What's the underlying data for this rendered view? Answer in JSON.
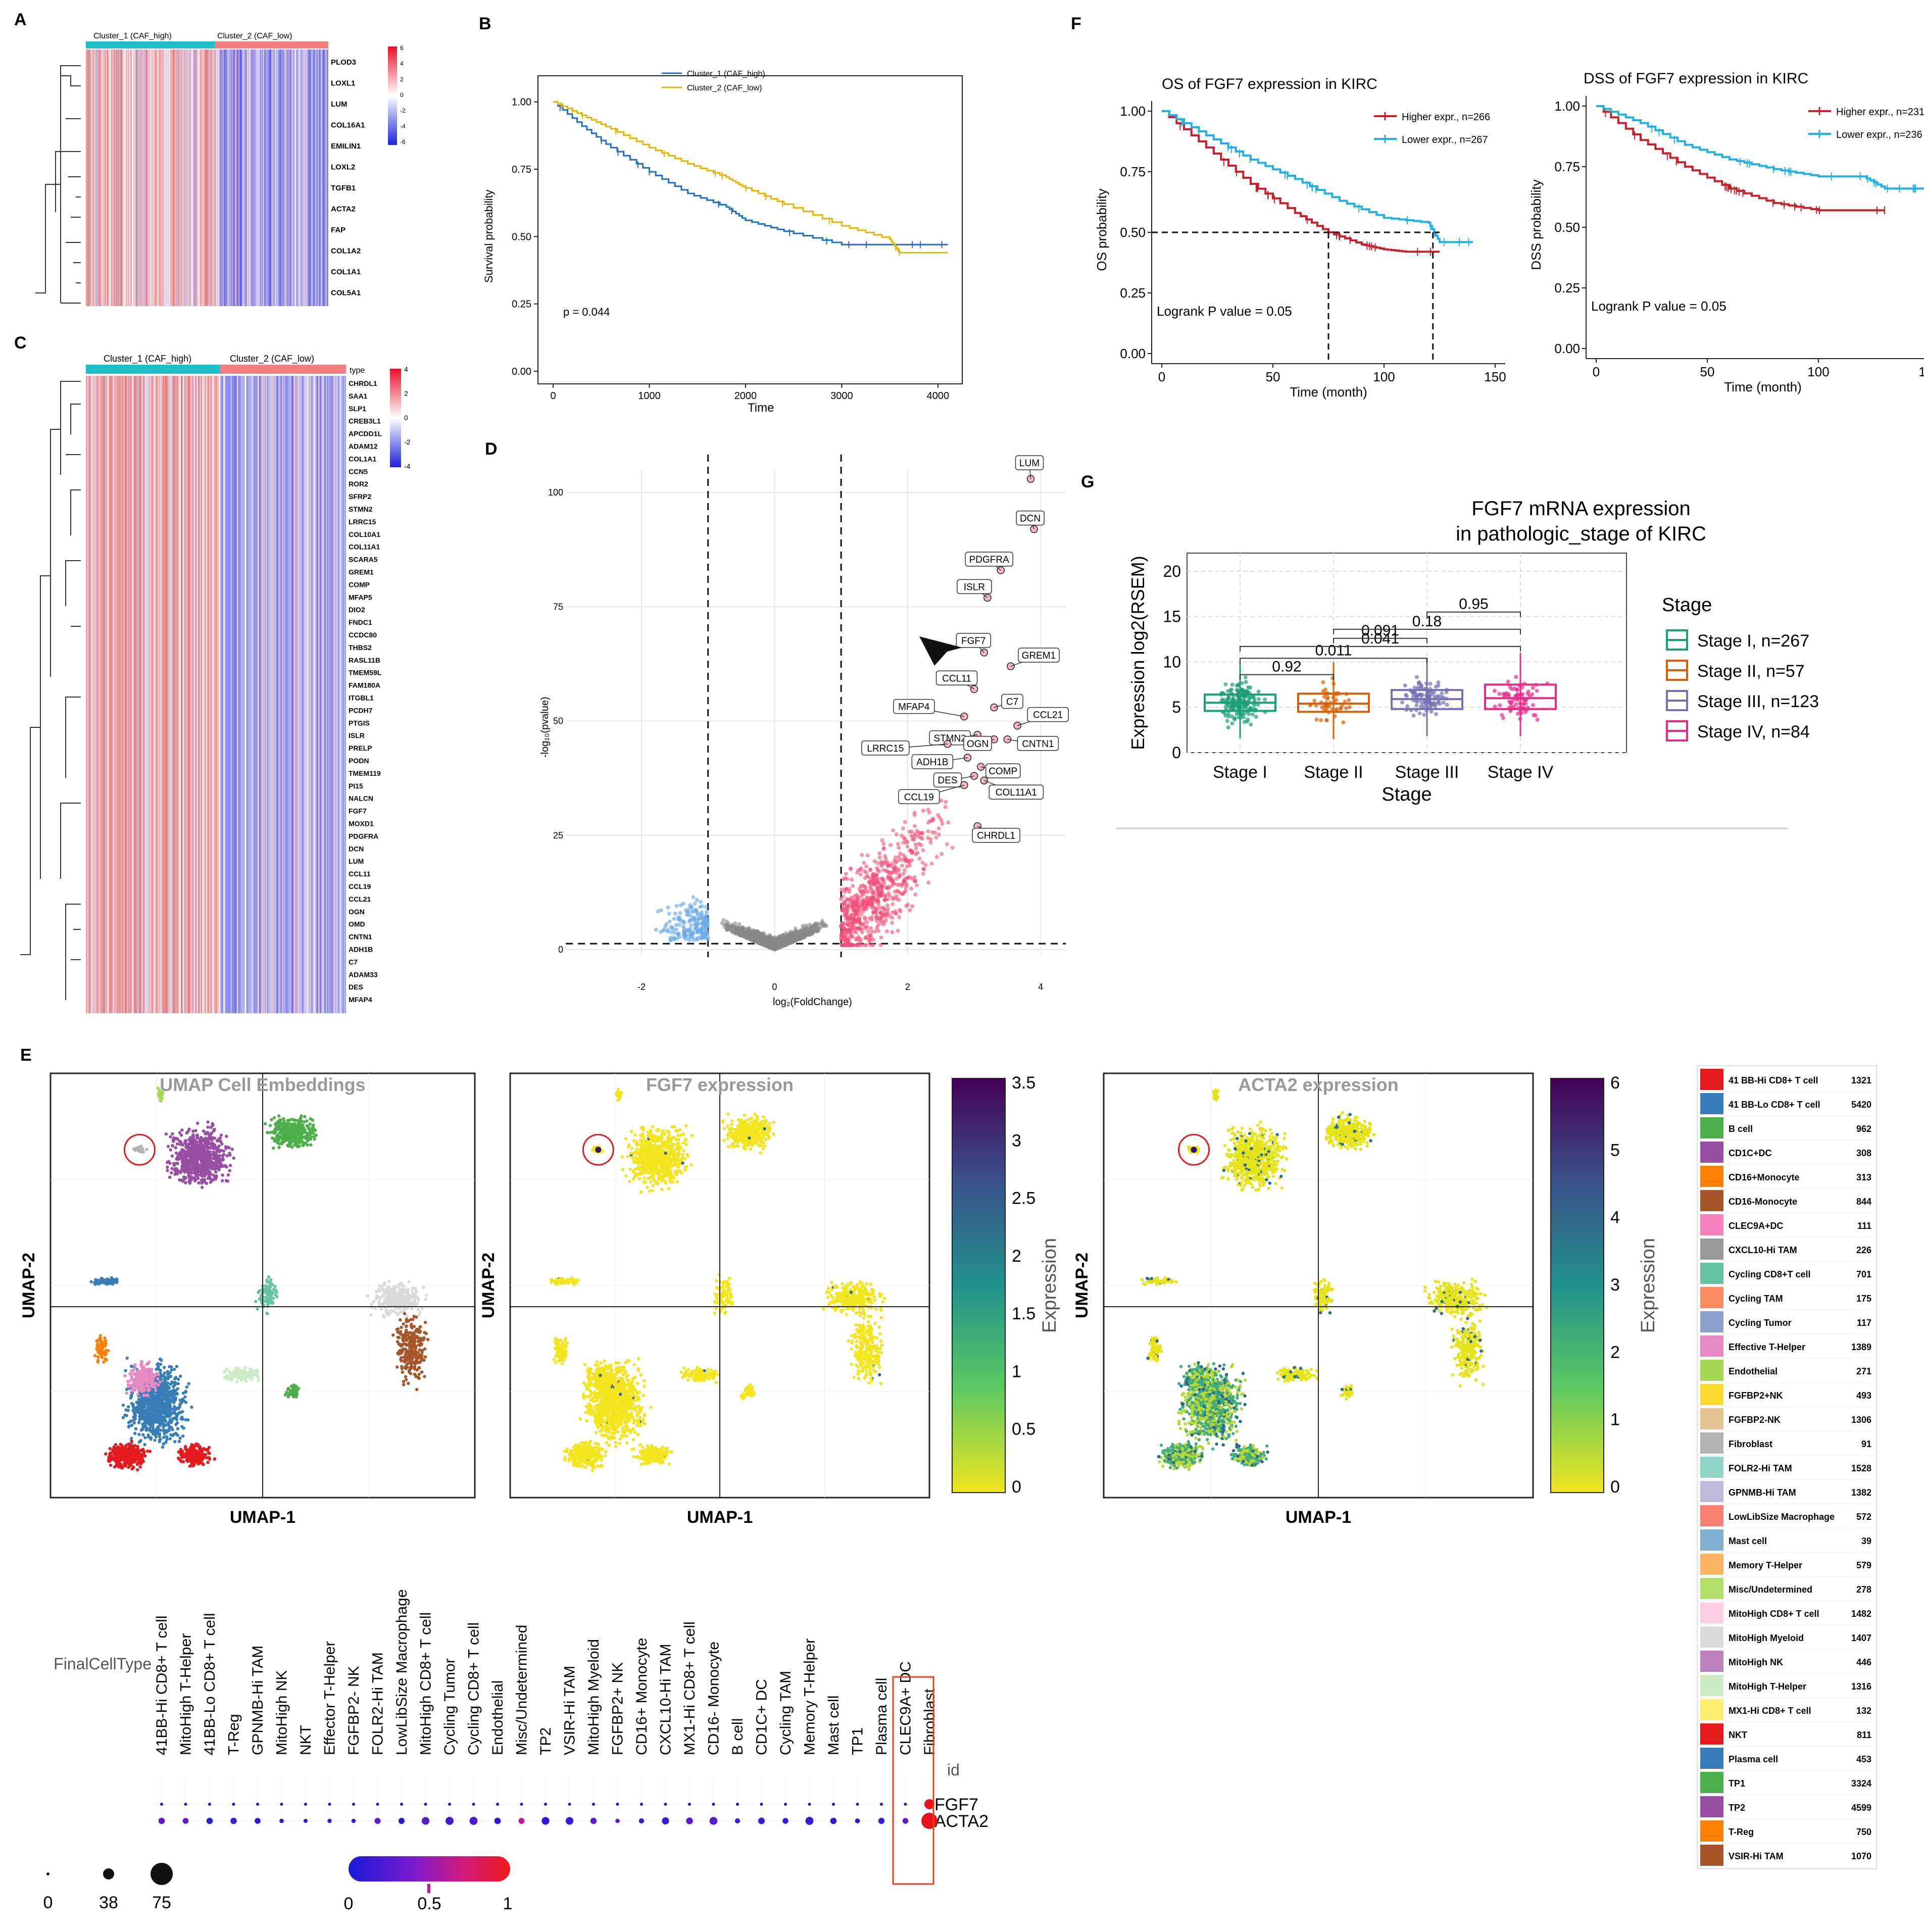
{
  "panels": {
    "A": {
      "label": "A",
      "cluster_1": "Cluster_1 (CAF_high)",
      "cluster_2": "Cluster_2 (CAF_low)",
      "genes": [
        "PLOD3",
        "LOXL1",
        "LUM",
        "COL16A1",
        "EMILIN1",
        "LOXL2",
        "TGFB1",
        "ACTA2",
        "FAP",
        "COL1A2",
        "COL1A1",
        "COL5A1"
      ],
      "scale": [
        "6",
        "4",
        "2",
        "0",
        "-2",
        "-4",
        "-6"
      ]
    },
    "B": {
      "label": "B",
      "legend": [
        "Cluster_1 (CAF_high)",
        "Cluster_2 (CAF_low)"
      ],
      "p_text": "p = 0.044",
      "xlabel": "Time",
      "ylabel": "Survival probability",
      "xticks": [
        "0",
        "1000",
        "2000",
        "3000",
        "4000"
      ],
      "yticks": [
        "0.00",
        "0.25",
        "0.50",
        "0.75",
        "1.00"
      ]
    },
    "C": {
      "label": "C",
      "cluster_1": "Cluster_1 (CAF_high)",
      "cluster_2": "Cluster_2 (CAF_low)",
      "type_label": "type",
      "genes": [
        "CHRDL1",
        "SAA1",
        "SLP1",
        "CREB3L1",
        "APCDD1L",
        "ADAM12",
        "COL1A1",
        "CCN5",
        "ROR2",
        "SFRP2",
        "STMN2",
        "LRRC15",
        "COL10A1",
        "COL11A1",
        "SCARA5",
        "GREM1",
        "COMP",
        "MFAP5",
        "DIO2",
        "FNDC1",
        "CCDC80",
        "THBS2",
        "RASL11B",
        "TMEM59L",
        "FAM180A",
        "ITGBL1",
        "PCDH7",
        "PTGIS",
        "ISLR",
        "PRELP",
        "PODN",
        "TMEM119",
        "PI15",
        "NALCN",
        "FGF7",
        "MOXD1",
        "PDGFRA",
        "DCN",
        "LUM",
        "CCL11",
        "CCL19",
        "CCL21",
        "OGN",
        "OMD",
        "CNTN1",
        "ADH1B",
        "C7",
        "ADAM33",
        "DES",
        "MFAP4"
      ],
      "scale": [
        "4",
        "2",
        "0",
        "-2",
        "-4"
      ]
    },
    "D": {
      "label": "D",
      "xlabel": "log₂(FoldChange)",
      "ylabel": "-log₁₀(pvalue)",
      "xticks": [
        "-2",
        "0",
        "2",
        "4"
      ],
      "yticks": [
        "0",
        "25",
        "50",
        "75",
        "100"
      ],
      "gene_labels": [
        "LUM",
        "DCN",
        "PDGFRA",
        "ISLR",
        "FGF7",
        "GREM1",
        "CCL11",
        "C7",
        "MFAP4",
        "CCL21",
        "STMN2",
        "CNTN1",
        "LRRC15",
        "OGN",
        "ADH1B",
        "COMP",
        "DES",
        "COL11A1",
        "CCL19",
        "CHRDL1"
      ]
    },
    "E": {
      "label": "E",
      "umap_titles": [
        "UMAP Cell Embeddings",
        "FGF7 expression",
        "ACTA2 expression"
      ],
      "xlabel": "UMAP-1",
      "ylabel": "UMAP-2",
      "expression_label": "Expression",
      "fgf7_scale": [
        "3.5",
        "3",
        "2.5",
        "2",
        "1.5",
        "1",
        "0.5",
        "0"
      ],
      "acta2_scale": [
        "6",
        "5",
        "4",
        "3",
        "2",
        "1",
        "0"
      ],
      "dot_row_label": "FinalCellType",
      "dot_id_label": "id",
      "dot_genes": [
        "FGF7",
        "ACTA2"
      ],
      "dot_celltypes": [
        "41BB-Hi CD8+ T cell",
        "MitoHigh T-Helper",
        "41BB-Lo CD8+ T cell",
        "T-Reg",
        "GPNMB-Hi TAM",
        "MitoHigh NK",
        "NKT",
        "Effector T-Helper",
        "FGFBP2- NK",
        "FOLR2-Hi TAM",
        "LowLibSize Macrophage",
        "MitoHigh CD8+ T cell",
        "Cycling Tumor",
        "Cycling CD8+ T cell",
        "Endothelial",
        "Misc/Undetermined",
        "TP2",
        "VSIR-Hi TAM",
        "MitoHigh Myeloid",
        "FGFBP2+ NK",
        "CD16+ Monocyte",
        "CXCL10-Hi TAM",
        "MX1-Hi CD8+ T cell",
        "CD16- Monocyte",
        "B cell",
        "CD1C+ DC",
        "Cycling TAM",
        "Memory T-Helper",
        "Mast cell",
        "TP1",
        "Plasma cell",
        "CLEC9A+ DC",
        "Fibroblast"
      ],
      "size_legend": [
        "0",
        "38",
        "75"
      ],
      "color_legend": [
        "0",
        "0.5",
        "1"
      ],
      "cell_legend": [
        {
          "name": "41 BB-Hi CD8+ T cell",
          "n": "1321",
          "color": "#e41a1c"
        },
        {
          "name": "41 BB-Lo CD8+ T cell",
          "n": "5420",
          "color": "#377eb8"
        },
        {
          "name": "B cell",
          "n": "962",
          "color": "#4daf4a"
        },
        {
          "name": "CD1C+DC",
          "n": "308",
          "color": "#984ea3"
        },
        {
          "name": "CD16+Monocyte",
          "n": "313",
          "color": "#ff7f00"
        },
        {
          "name": "CD16-Monocyte",
          "n": "844",
          "color": "#a65628"
        },
        {
          "name": "CLEC9A+DC",
          "n": "111",
          "color": "#f781bf"
        },
        {
          "name": "CXCL10-Hi TAM",
          "n": "226",
          "color": "#999999"
        },
        {
          "name": "Cycling CD8+T cell",
          "n": "701",
          "color": "#66c2a5"
        },
        {
          "name": "Cycling TAM",
          "n": "175",
          "color": "#fc8d62"
        },
        {
          "name": "Cycling Tumor",
          "n": "117",
          "color": "#8da0cb"
        },
        {
          "name": "Effective T-Helper",
          "n": "1389",
          "color": "#e78ac3"
        },
        {
          "name": "Endothelial",
          "n": "271",
          "color": "#a6d854"
        },
        {
          "name": "FGFBP2+NK",
          "n": "493",
          "color": "#ffd92f"
        },
        {
          "name": "FGFBP2-NK",
          "n": "1306",
          "color": "#e5c494"
        },
        {
          "name": "Fibroblast",
          "n": "91",
          "color": "#b3b3b3"
        },
        {
          "name": "FOLR2-Hi TAM",
          "n": "1528",
          "color": "#8dd3c7"
        },
        {
          "name": "GPNMB-Hi TAM",
          "n": "1382",
          "color": "#bebada"
        },
        {
          "name": "LowLibSize Macrophage",
          "n": "572",
          "color": "#fb8072"
        },
        {
          "name": "Mast cell",
          "n": "39",
          "color": "#80b1d3"
        },
        {
          "name": "Memory T-Helper",
          "n": "579",
          "color": "#fdb462"
        },
        {
          "name": "Misc/Undetermined",
          "n": "278",
          "color": "#b3de69"
        },
        {
          "name": "MitoHigh CD8+ T cell",
          "n": "1482",
          "color": "#fccde5"
        },
        {
          "name": "MitoHigh Myeloid",
          "n": "1407",
          "color": "#d9d9d9"
        },
        {
          "name": "MitoHigh NK",
          "n": "446",
          "color": "#bc80bd"
        },
        {
          "name": "MitoHigh T-Helper",
          "n": "1316",
          "color": "#ccebc5"
        },
        {
          "name": "MX1-Hi CD8+ T cell",
          "n": "132",
          "color": "#ffed6f"
        },
        {
          "name": "NKT",
          "n": "811",
          "color": "#e41a1c"
        },
        {
          "name": "Plasma cell",
          "n": "453",
          "color": "#377eb8"
        },
        {
          "name": "TP1",
          "n": "3324",
          "color": "#4daf4a"
        },
        {
          "name": "TP2",
          "n": "4599",
          "color": "#984ea3"
        },
        {
          "name": "T-Reg",
          "n": "750",
          "color": "#ff7f00"
        },
        {
          "name": "VSIR-Hi TAM",
          "n": "1070",
          "color": "#a65628"
        }
      ]
    },
    "F": {
      "label": "F",
      "os_title": "OS of FGF7 expression in KIRC",
      "dss_title": "DSS of FGF7 expression in KIRC",
      "os_legend": [
        "Higher expr., n=266",
        "Lower expr., n=267"
      ],
      "dss_legend": [
        "Higher expr., n=231",
        "Lower expr., n=236"
      ],
      "os_ylabel": "OS probability",
      "dss_ylabel": "DSS probability",
      "xlabel": "Time (month)",
      "logrank": "Logrank P value = 0.05",
      "xticks": [
        "0",
        "50",
        "100",
        "150"
      ],
      "yticks": [
        "0.00",
        "0.25",
        "0.50",
        "0.75",
        "1.00"
      ]
    },
    "G": {
      "label": "G",
      "title_line1": "FGF7 mRNA expression",
      "title_line2": "in pathologic_stage of KIRC",
      "ylabel": "Expression log2(RSEM)",
      "xlabel": "Stage",
      "legend_title": "Stage",
      "yticks": [
        "0",
        "5",
        "10",
        "15",
        "20"
      ],
      "pvals": [
        "0.92",
        "0.011",
        "0.041",
        "0.091",
        "0.18",
        "0.95"
      ]
    }
  },
  "colors": {
    "cluster1": "#1fbfc9",
    "cluster2": "#f08080",
    "km_blue": "#1f6fc9",
    "km_gold": "#e6b400",
    "high_red": "#c9202a",
    "low_blue": "#1fb0e6",
    "volcano_up": "#f0507a",
    "volcano_down": "#6aaae6",
    "volcano_ns": "#888888"
  },
  "chart_data": [
    {
      "type": "heatmap",
      "title": "A",
      "rows": [
        "PLOD3",
        "LOXL1",
        "LUM",
        "COL16A1",
        "EMILIN1",
        "LOXL2",
        "TGFB1",
        "ACTA2",
        "FAP",
        "COL1A2",
        "COL1A1",
        "COL5A1"
      ],
      "groups": [
        "Cluster_1 (CAF_high)",
        "Cluster_2 (CAF_low)"
      ],
      "range": [
        -6,
        6
      ]
    },
    {
      "type": "line",
      "title": "B",
      "xlabel": "Time",
      "ylabel": "Survival probability",
      "xlim": [
        0,
        4200
      ],
      "ylim": [
        0,
        1
      ],
      "series": [
        {
          "name": "Cluster_1 (CAF_high)",
          "x": [
            0,
            300,
            600,
            1000,
            1400,
            1800,
            2000,
            2400,
            3000,
            3500,
            4000,
            4100
          ],
          "y": [
            1.0,
            0.91,
            0.83,
            0.74,
            0.66,
            0.61,
            0.56,
            0.52,
            0.47,
            0.47,
            0.47,
            0.47
          ]
        },
        {
          "name": "Cluster_2 (CAF_low)",
          "x": [
            0,
            300,
            600,
            1000,
            1400,
            1800,
            2000,
            2400,
            3000,
            3500,
            3600,
            4100
          ],
          "y": [
            1.0,
            0.95,
            0.9,
            0.83,
            0.77,
            0.72,
            0.68,
            0.62,
            0.54,
            0.49,
            0.44,
            0.44
          ]
        }
      ],
      "annotation": "p = 0.044"
    },
    {
      "type": "heatmap",
      "title": "C",
      "rows_count": 50,
      "groups": [
        "Cluster_1 (CAF_high)",
        "Cluster_2 (CAF_low)"
      ],
      "range": [
        -4,
        4
      ]
    },
    {
      "type": "scatter",
      "title": "D",
      "xlabel": "log2(FoldChange)",
      "ylabel": "-log10(pvalue)",
      "xlim": [
        -2.5,
        4.2
      ],
      "ylim": [
        0,
        105
      ],
      "thresholds": {
        "fc": [
          -1,
          1
        ],
        "p": 1.3
      },
      "labeled_points": [
        {
          "gene": "LUM",
          "x": 3.85,
          "y": 103
        },
        {
          "gene": "DCN",
          "x": 3.9,
          "y": 92
        },
        {
          "gene": "PDGFRA",
          "x": 3.4,
          "y": 83
        },
        {
          "gene": "ISLR",
          "x": 3.2,
          "y": 77
        },
        {
          "gene": "FGF7",
          "x": 3.15,
          "y": 65
        },
        {
          "gene": "GREM1",
          "x": 3.55,
          "y": 62
        },
        {
          "gene": "CCL11",
          "x": 3.0,
          "y": 57
        },
        {
          "gene": "C7",
          "x": 3.3,
          "y": 53
        },
        {
          "gene": "MFAP4",
          "x": 2.85,
          "y": 51
        },
        {
          "gene": "CCL21",
          "x": 3.65,
          "y": 49
        },
        {
          "gene": "STMN2",
          "x": 3.05,
          "y": 47
        },
        {
          "gene": "CNTN1",
          "x": 3.5,
          "y": 46
        },
        {
          "gene": "LRRC15",
          "x": 2.6,
          "y": 45
        },
        {
          "gene": "OGN",
          "x": 3.3,
          "y": 46
        },
        {
          "gene": "ADH1B",
          "x": 2.9,
          "y": 42
        },
        {
          "gene": "COMP",
          "x": 3.1,
          "y": 40
        },
        {
          "gene": "DES",
          "x": 3.0,
          "y": 38
        },
        {
          "gene": "COL11A1",
          "x": 3.15,
          "y": 37
        },
        {
          "gene": "CCL19",
          "x": 2.85,
          "y": 36
        },
        {
          "gene": "CHRDL1",
          "x": 3.05,
          "y": 27
        }
      ]
    },
    {
      "type": "line",
      "title": "OS of FGF7 expression in KIRC",
      "xlabel": "Time (month)",
      "ylabel": "OS probability",
      "xlim": [
        0,
        150
      ],
      "ylim": [
        0,
        1
      ],
      "series": [
        {
          "name": "Higher expr., n=266",
          "x": [
            0,
            20,
            40,
            60,
            75,
            90,
            100,
            110,
            125
          ],
          "y": [
            1.0,
            0.85,
            0.7,
            0.58,
            0.5,
            0.45,
            0.43,
            0.42,
            0.42
          ]
        },
        {
          "name": "Lower expr., n=267",
          "x": [
            0,
            20,
            40,
            60,
            80,
            100,
            120,
            125,
            140
          ],
          "y": [
            1.0,
            0.9,
            0.8,
            0.72,
            0.63,
            0.56,
            0.54,
            0.46,
            0.46
          ]
        }
      ],
      "annotation": "Logrank P value = 0.05"
    },
    {
      "type": "line",
      "title": "DSS of FGF7 expression in KIRC",
      "xlabel": "Time (month)",
      "ylabel": "DSS probability",
      "xlim": [
        0,
        150
      ],
      "ylim": [
        0,
        1
      ],
      "series": [
        {
          "name": "Higher expr., n=231",
          "x": [
            0,
            20,
            40,
            60,
            80,
            100,
            130
          ],
          "y": [
            1.0,
            0.86,
            0.75,
            0.66,
            0.6,
            0.57,
            0.57
          ]
        },
        {
          "name": "Lower expr., n=236",
          "x": [
            0,
            20,
            40,
            60,
            80,
            100,
            120,
            130,
            150
          ],
          "y": [
            1.0,
            0.93,
            0.84,
            0.78,
            0.74,
            0.71,
            0.71,
            0.66,
            0.66
          ]
        }
      ],
      "annotation": "Logrank P value = 0.05"
    },
    {
      "type": "bar",
      "title": "FGF7 mRNA expression in pathologic_stage of KIRC",
      "subtype": "boxplot",
      "xlabel": "Stage",
      "ylabel": "Expression log2(RSEM)",
      "ylim": [
        0,
        22
      ],
      "categories": [
        "Stage I, n=267",
        "Stage II, n=57",
        "Stage III, n=123",
        "Stage IV, n=84"
      ],
      "medians": [
        5.5,
        5.4,
        5.9,
        6.0
      ],
      "q1": [
        4.6,
        4.5,
        4.8,
        4.8
      ],
      "q3": [
        6.4,
        6.5,
        6.9,
        7.5
      ],
      "comparisons": [
        {
          "pair": [
            "Stage I",
            "Stage II"
          ],
          "p": "0.92"
        },
        {
          "pair": [
            "Stage I",
            "Stage III"
          ],
          "p": "0.011"
        },
        {
          "pair": [
            "Stage I",
            "Stage IV"
          ],
          "p": "0.041"
        },
        {
          "pair": [
            "Stage II",
            "Stage III"
          ],
          "p": "0.091"
        },
        {
          "pair": [
            "Stage II",
            "Stage IV"
          ],
          "p": "0.18"
        },
        {
          "pair": [
            "Stage III",
            "Stage IV"
          ],
          "p": "0.95"
        }
      ]
    },
    {
      "type": "scatter",
      "title": "UMAP Cell Embeddings",
      "xlabel": "UMAP-1",
      "ylabel": "UMAP-2"
    },
    {
      "type": "scatter",
      "title": "FGF7 expression",
      "xlabel": "UMAP-1",
      "ylabel": "UMAP-2",
      "color_range": [
        0,
        3.5
      ]
    },
    {
      "type": "scatter",
      "title": "ACTA2 expression",
      "xlabel": "UMAP-1",
      "ylabel": "UMAP-2",
      "color_range": [
        0,
        6
      ]
    }
  ]
}
